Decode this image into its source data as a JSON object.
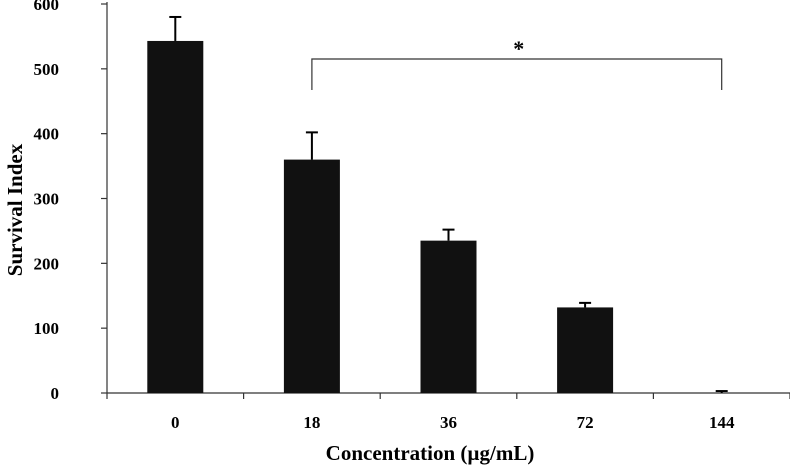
{
  "chart_data": {
    "type": "bar",
    "title": "",
    "xlabel": "Concentration (µg/mL)",
    "ylabel": "Survival Index",
    "categories": [
      "0",
      "18",
      "36",
      "72",
      "144"
    ],
    "values": [
      543,
      360,
      235,
      132,
      0
    ],
    "errors": [
      37,
      42,
      17,
      7,
      3
    ],
    "ylim": [
      0,
      600
    ],
    "yticks": [
      "0",
      "100",
      "200",
      "300",
      "400",
      "500",
      "600"
    ],
    "grid": false,
    "legend": "none",
    "bar_color": "#111111",
    "annotation": {
      "label": "*",
      "from_category": "18",
      "to_category": "144"
    }
  }
}
